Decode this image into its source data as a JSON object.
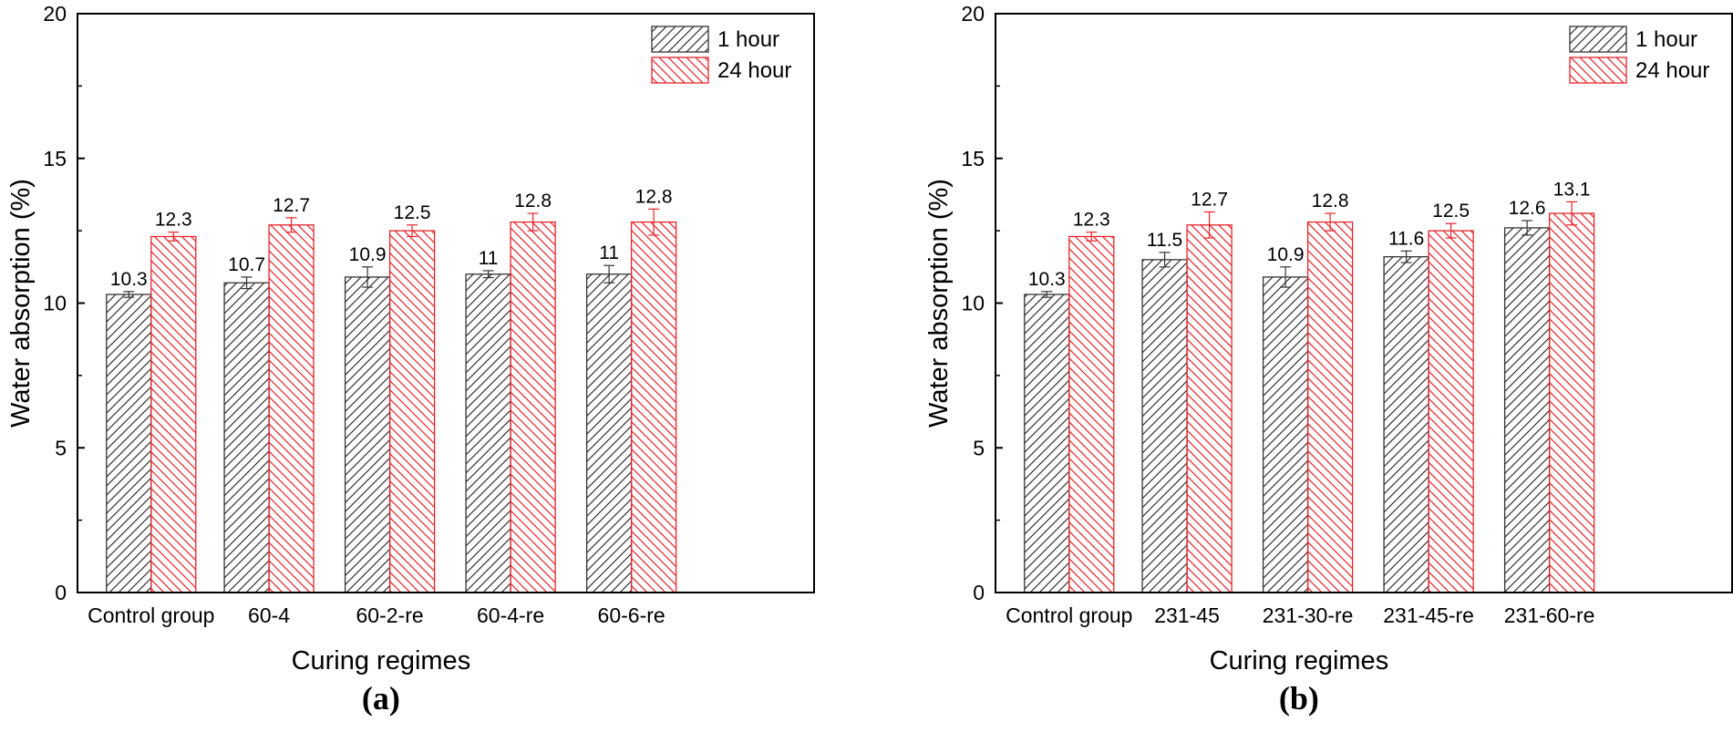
{
  "chart_data": [
    {
      "type": "bar",
      "panel_label": "(a)",
      "xlabel": "Curing regimes",
      "ylabel": "Water absorption (%)",
      "ylim": [
        0,
        20
      ],
      "yticks": [
        0,
        5,
        10,
        15,
        20
      ],
      "grid": false,
      "legend_position": "top-right",
      "categories": [
        "Control group",
        "60-4",
        "60-2-re",
        "60-4-re",
        "60-6-re"
      ],
      "series": [
        {
          "name": "1 hour",
          "color": "#333333",
          "values": [
            10.3,
            10.7,
            10.9,
            11,
            11
          ],
          "errors": [
            0.1,
            0.2,
            0.35,
            0.12,
            0.3
          ],
          "labels": [
            "10.3",
            "10.7",
            "10.9",
            "11",
            "11"
          ]
        },
        {
          "name": "24 hour",
          "color": "#e8242b",
          "values": [
            12.3,
            12.7,
            12.5,
            12.8,
            12.8
          ],
          "errors": [
            0.15,
            0.25,
            0.2,
            0.3,
            0.45
          ],
          "labels": [
            "12.3",
            "12.7",
            "12.5",
            "12.8",
            "12.8"
          ]
        }
      ]
    },
    {
      "type": "bar",
      "panel_label": "(b)",
      "xlabel": "Curing regimes",
      "ylabel": "Water absorption (%)",
      "ylim": [
        0,
        20
      ],
      "yticks": [
        0,
        5,
        10,
        15,
        20
      ],
      "grid": false,
      "legend_position": "top-right",
      "categories": [
        "Control group",
        "231-45",
        "231-30-re",
        "231-45-re",
        "231-60-re"
      ],
      "series": [
        {
          "name": "1 hour",
          "color": "#333333",
          "values": [
            10.3,
            11.5,
            10.9,
            11.6,
            12.6
          ],
          "errors": [
            0.1,
            0.25,
            0.35,
            0.2,
            0.25
          ],
          "labels": [
            "10.3",
            "11.5",
            "10.9",
            "11.6",
            "12.6"
          ]
        },
        {
          "name": "24 hour",
          "color": "#e8242b",
          "values": [
            12.3,
            12.7,
            12.8,
            12.5,
            13.1
          ],
          "errors": [
            0.15,
            0.45,
            0.3,
            0.25,
            0.4
          ],
          "labels": [
            "12.3",
            "12.7",
            "12.8",
            "12.5",
            "13.1"
          ]
        }
      ]
    }
  ]
}
